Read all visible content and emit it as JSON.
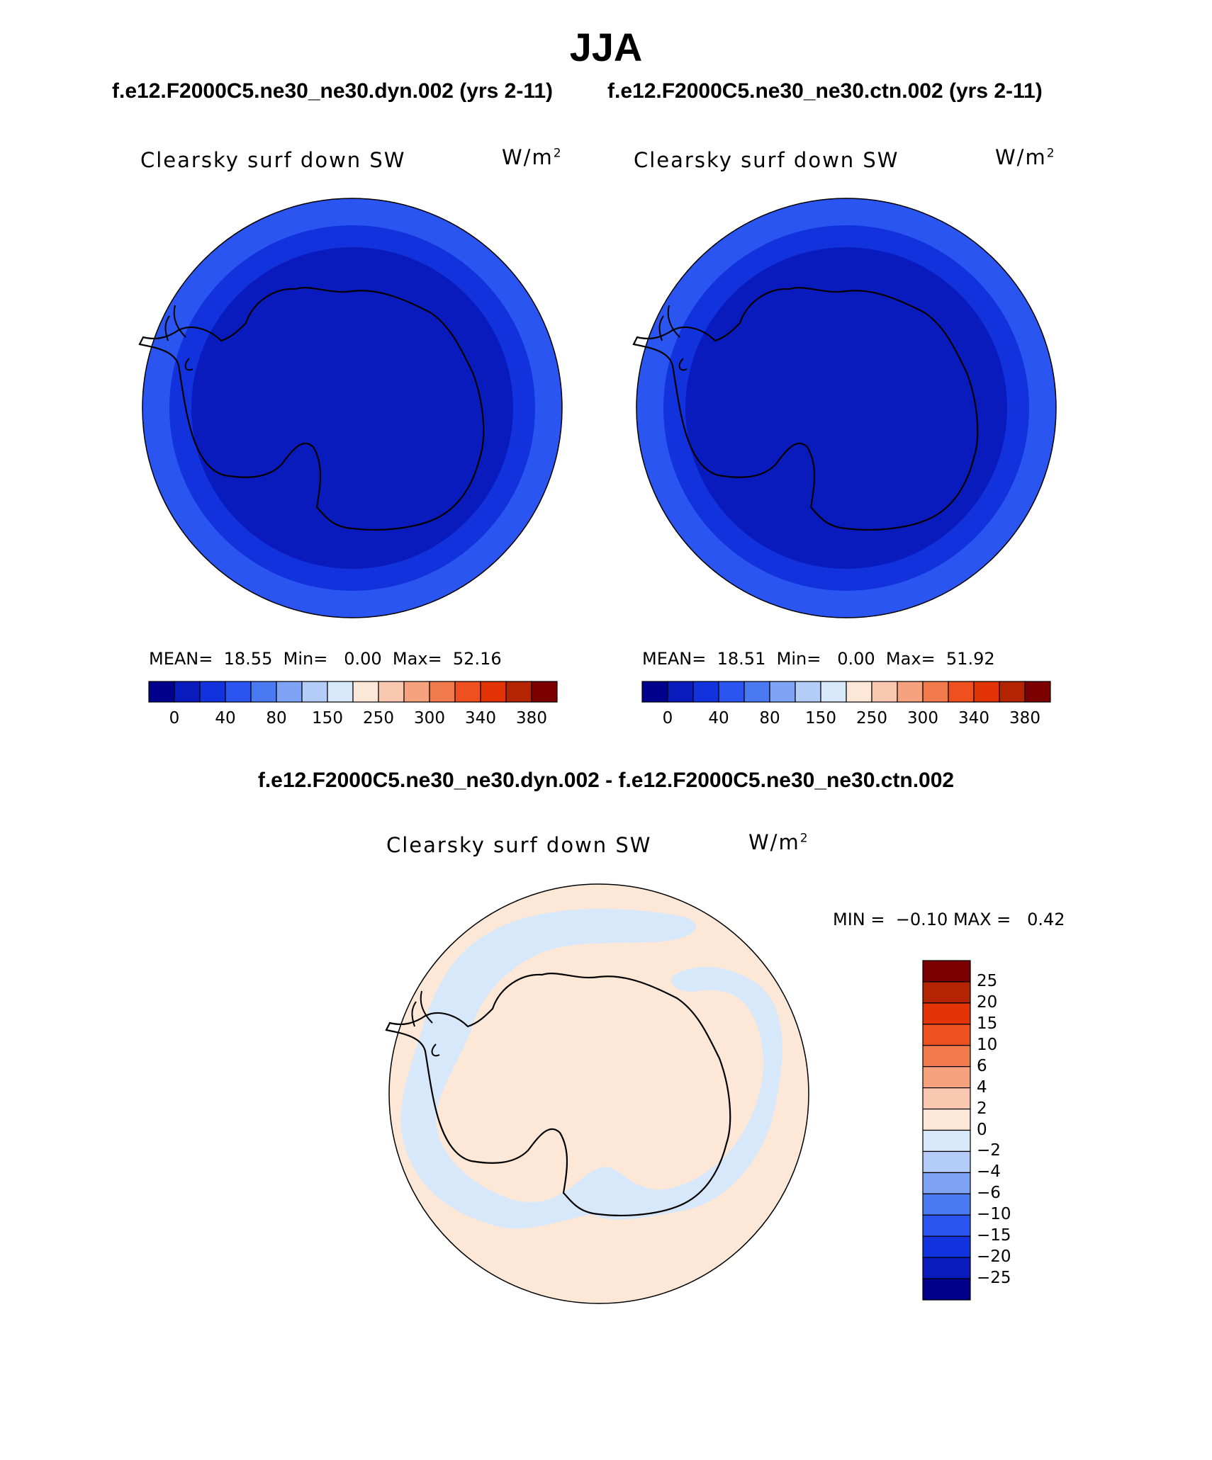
{
  "header": {
    "title": "JJA",
    "subtitle_left": "f.e12.F2000C5.ne30_ne30.dyn.002 (yrs 2-11)",
    "subtitle_right": "f.e12.F2000C5.ne30_ne30.ctn.002 (yrs 2-11)",
    "diff_title": "f.e12.F2000C5.ne30_ne30.dyn.002 - f.e12.F2000C5.ne30_ne30.ctn.002"
  },
  "panels": {
    "left": {
      "variable": "Clearsky surf down SW",
      "unit_base": "W/m",
      "unit_exp": "2",
      "mean_label": "MEAN=",
      "mean": "18.55",
      "min_label": "Min=",
      "min": "0.00",
      "max_label": "Max=",
      "max": "52.16"
    },
    "right": {
      "variable": "Clearsky surf down SW",
      "unit_base": "W/m",
      "unit_exp": "2",
      "mean_label": "MEAN=",
      "mean": "18.51",
      "min_label": "Min=",
      "min": "0.00",
      "max_label": "Max=",
      "max": "51.92"
    },
    "diff": {
      "variable": "Clearsky surf down SW",
      "unit_base": "W/m",
      "unit_exp": "2",
      "min_label": "MIN =",
      "min": "−0.10",
      "max_label": "MAX =",
      "max": "0.42"
    }
  },
  "colorbar_abs": {
    "colors": [
      "#00008c",
      "#0a1bbe",
      "#1132dc",
      "#2a55f0",
      "#4a7af2",
      "#7fa3f5",
      "#b4ccf8",
      "#d8e8fb",
      "#fde8d7",
      "#fac8b1",
      "#f6a27f",
      "#f07a4c",
      "#ee5020",
      "#e23405",
      "#b52402",
      "#7c0000"
    ],
    "labels": [
      "0",
      "40",
      "80",
      "150",
      "250",
      "300",
      "340",
      "380"
    ]
  },
  "colorbar_diff": {
    "colors_top_to_bottom": [
      "#7c0000",
      "#b52402",
      "#e23405",
      "#ee5020",
      "#f07a4c",
      "#f6a27f",
      "#fac8b1",
      "#fde8d7",
      "#d8e8fb",
      "#b4ccf8",
      "#7fa3f5",
      "#4a7af2",
      "#2a55f0",
      "#1132dc",
      "#0a1bbe",
      "#00008c"
    ],
    "labels_top_to_bottom": [
      "25",
      "20",
      "15",
      "10",
      "6",
      "4",
      "2",
      "0",
      "−2",
      "−4",
      "−6",
      "−10",
      "−15",
      "−20",
      "−25"
    ]
  },
  "map_colors": {
    "outer_ring": "#2a55f0",
    "mid_ring": "#1132dc",
    "inner_disc": "#0a1bbe",
    "diff_positive": "#fde8d7",
    "diff_negative": "#d8e8fb"
  }
}
